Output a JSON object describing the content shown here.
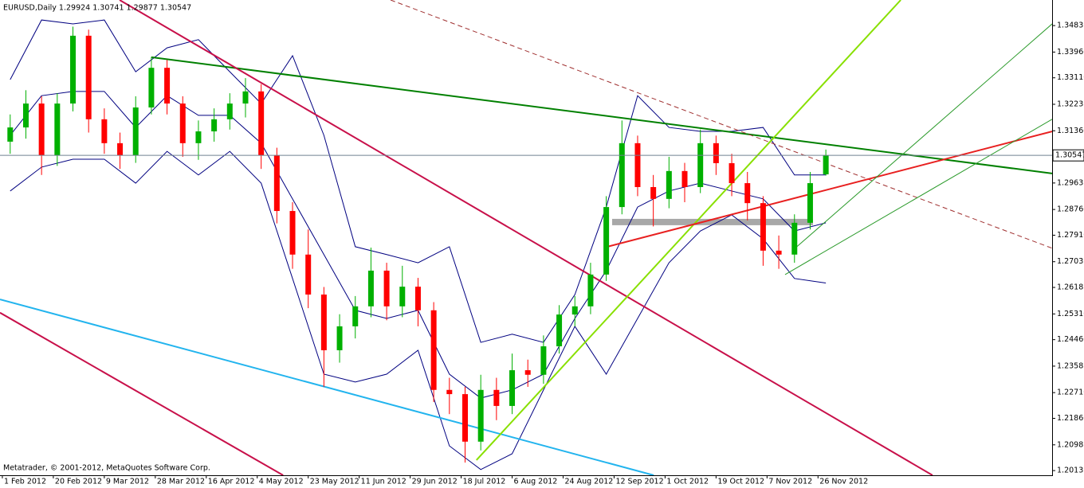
{
  "chart_data": {
    "type": "candlestick",
    "title": "EURUSD,Daily  1.29924 1.30741 1.29877 1.30547",
    "footer": "Metatrader, © 2001-2012, MetaQuotes Software Corp.",
    "up_color": "#00b000",
    "down_color": "#ff0000",
    "band_color": "#000080",
    "grid": false,
    "xlim": [
      -0.6,
      267.7
    ],
    "ylim": [
      1.1998,
      1.3568
    ],
    "xticks": [
      {
        "value": 0,
        "label": "1 Feb 2012"
      },
      {
        "value": 13,
        "label": "20 Feb 2012"
      },
      {
        "value": 26,
        "label": "9 Mar 2012"
      },
      {
        "value": 39,
        "label": "28 Mar 2012"
      },
      {
        "value": 52,
        "label": "16 Apr 2012"
      },
      {
        "value": 65,
        "label": "4 May 2012"
      },
      {
        "value": 78,
        "label": "23 May 2012"
      },
      {
        "value": 91,
        "label": "11 Jun 2012"
      },
      {
        "value": 104,
        "label": "29 Jun 2012"
      },
      {
        "value": 117,
        "label": "18 Jul 2012"
      },
      {
        "value": 130,
        "label": "6 Aug 2012"
      },
      {
        "value": 143,
        "label": "24 Aug 2012"
      },
      {
        "value": 156,
        "label": "12 Sep 2012"
      },
      {
        "value": 169,
        "label": "1 Oct 2012"
      },
      {
        "value": 182,
        "label": "19 Oct 2012"
      },
      {
        "value": 195,
        "label": "7 Nov 2012"
      },
      {
        "value": 208,
        "label": "26 Nov 2012"
      }
    ],
    "yticks": [
      1.34835,
      {
        "value": 1.3396,
        "label": "1.33960"
      },
      {
        "value": 1.3311,
        "label": "1.33110"
      },
      1.32235,
      {
        "value": 1.3136,
        "label": "1.31360"
      },
      1.29635,
      {
        "value": 1.2876,
        "label": "1.28760"
      },
      {
        "value": 1.2791,
        "label": "1.27910"
      },
      1.27035,
      1.26185,
      {
        "value": 1.2531,
        "label": "1.25310"
      },
      {
        "value": 1.2446,
        "label": "1.24460"
      },
      1.23585,
      {
        "value": 1.2271,
        "label": "1.22710"
      },
      {
        "value": 1.2186,
        "label": "1.21860"
      },
      1.20985,
      1.20135
    ],
    "last_price": 1.30547,
    "x": [
      2,
      6,
      10,
      14,
      18,
      22,
      26,
      30,
      34,
      38,
      42,
      46,
      50,
      54,
      58,
      62,
      66,
      70,
      74,
      78,
      82,
      86,
      90,
      94,
      98,
      102,
      106,
      110,
      114,
      118,
      122,
      126,
      130,
      134,
      138,
      142,
      146,
      150,
      154,
      158,
      162,
      166,
      170,
      174,
      178,
      182,
      186,
      190,
      194,
      198,
      202,
      206,
      210
    ],
    "ohlc": [
      [
        1.31,
        1.319,
        1.306,
        1.3147
      ],
      [
        1.3147,
        1.327,
        1.311,
        1.3226
      ],
      [
        1.3226,
        1.325,
        1.299,
        1.3055
      ],
      [
        1.3055,
        1.326,
        1.302,
        1.3226
      ],
      [
        1.3226,
        1.348,
        1.32,
        1.345
      ],
      [
        1.345,
        1.347,
        1.313,
        1.3174
      ],
      [
        1.3174,
        1.321,
        1.306,
        1.3095
      ],
      [
        1.3095,
        1.313,
        1.301,
        1.3055
      ],
      [
        1.3055,
        1.325,
        1.303,
        1.3213
      ],
      [
        1.3213,
        1.338,
        1.319,
        1.3344
      ],
      [
        1.3344,
        1.337,
        1.319,
        1.3226
      ],
      [
        1.3226,
        1.325,
        1.305,
        1.3095
      ],
      [
        1.3095,
        1.317,
        1.304,
        1.3134
      ],
      [
        1.3134,
        1.321,
        1.31,
        1.3174
      ],
      [
        1.3174,
        1.326,
        1.314,
        1.3226
      ],
      [
        1.3226,
        1.331,
        1.318,
        1.3266
      ],
      [
        1.3266,
        1.329,
        1.301,
        1.3055
      ],
      [
        1.3055,
        1.308,
        1.283,
        1.2871
      ],
      [
        1.2871,
        1.29,
        1.268,
        1.2727
      ],
      [
        1.2727,
        1.281,
        1.255,
        1.2595
      ],
      [
        1.2595,
        1.262,
        1.229,
        1.2411
      ],
      [
        1.2411,
        1.253,
        1.237,
        1.249
      ],
      [
        1.249,
        1.259,
        1.245,
        1.2556
      ],
      [
        1.2556,
        1.275,
        1.252,
        1.2674
      ],
      [
        1.2674,
        1.27,
        1.251,
        1.2556
      ],
      [
        1.2556,
        1.269,
        1.252,
        1.2621
      ],
      [
        1.2621,
        1.265,
        1.249,
        1.2543
      ],
      [
        1.2543,
        1.257,
        1.224,
        1.228
      ],
      [
        1.228,
        1.232,
        1.22,
        1.2266
      ],
      [
        1.2266,
        1.229,
        1.204,
        1.2109
      ],
      [
        1.2109,
        1.233,
        1.208,
        1.228
      ],
      [
        1.228,
        1.232,
        1.218,
        1.2227
      ],
      [
        1.2227,
        1.24,
        1.22,
        1.2345
      ],
      [
        1.2345,
        1.238,
        1.229,
        1.233
      ],
      [
        1.233,
        1.246,
        1.23,
        1.2424
      ],
      [
        1.2424,
        1.256,
        1.24,
        1.2529
      ],
      [
        1.2529,
        1.259,
        1.249,
        1.2556
      ],
      [
        1.2556,
        1.27,
        1.253,
        1.2661
      ],
      [
        1.2661,
        1.292,
        1.264,
        1.2884
      ],
      [
        1.2884,
        1.317,
        1.286,
        1.3095
      ],
      [
        1.3095,
        1.312,
        1.292,
        1.295
      ],
      [
        1.295,
        1.299,
        1.282,
        1.2911
      ],
      [
        1.2911,
        1.305,
        1.288,
        1.3003
      ],
      [
        1.3003,
        1.303,
        1.29,
        1.295
      ],
      [
        1.295,
        1.314,
        1.293,
        1.3095
      ],
      [
        1.3095,
        1.312,
        1.299,
        1.3029
      ],
      [
        1.3029,
        1.306,
        1.292,
        1.2963
      ],
      [
        1.2963,
        1.3,
        1.284,
        1.2897
      ],
      [
        1.2897,
        1.292,
        1.269,
        1.274
      ],
      [
        1.274,
        1.279,
        1.268,
        1.2727
      ],
      [
        1.2727,
        1.286,
        1.27,
        1.2832
      ],
      [
        1.2832,
        1.3,
        1.281,
        1.2963
      ],
      [
        1.2992,
        1.3074,
        1.2988,
        1.3055
      ]
    ],
    "bands": [
      {
        "x": [
          2,
          10,
          18,
          26,
          34,
          42,
          50,
          58,
          66,
          74,
          82,
          90,
          98,
          106,
          114,
          122,
          130,
          138,
          146,
          154,
          162,
          170,
          178,
          186,
          194,
          202,
          210
        ],
        "values": [
          1.3305,
          1.3502,
          1.3489,
          1.3502,
          1.3331,
          1.341,
          1.3437,
          1.3331,
          1.3226,
          1.3384,
          1.3121,
          1.2753,
          1.2727,
          1.27,
          1.2753,
          1.2437,
          1.2464,
          1.2437,
          1.2595,
          1.2884,
          1.3252,
          1.3147,
          1.3134,
          1.3134,
          1.3147,
          1.299,
          1.299
        ]
      },
      {
        "x": [
          2,
          10,
          18,
          26,
          34,
          42,
          50,
          58,
          66,
          74,
          82,
          90,
          98,
          106,
          114,
          122,
          130,
          138,
          146,
          154,
          162,
          170,
          178,
          186,
          194,
          202,
          210
        ],
        "values": [
          1.3121,
          1.3252,
          1.3266,
          1.3266,
          1.3147,
          1.3252,
          1.3187,
          1.3187,
          1.3095,
          1.2911,
          1.2727,
          1.2543,
          1.2516,
          1.2543,
          1.2332,
          1.2253,
          1.228,
          1.2332,
          1.2516,
          1.2674,
          1.2884,
          1.2937,
          1.2963,
          1.2937,
          1.2911,
          1.2805,
          1.2832
        ]
      },
      {
        "x": [
          2,
          10,
          18,
          26,
          34,
          42,
          50,
          58,
          66,
          74,
          82,
          90,
          98,
          106,
          114,
          122,
          130,
          138,
          146,
          154,
          162,
          170,
          178,
          186,
          194,
          202,
          210
        ],
        "values": [
          1.2937,
          1.3016,
          1.3042,
          1.3042,
          1.2963,
          1.3068,
          1.299,
          1.3068,
          1.2963,
          1.2648,
          1.2332,
          1.2306,
          1.2332,
          1.2411,
          1.2095,
          1.2017,
          1.2069,
          1.228,
          1.249,
          1.2332,
          1.2516,
          1.27,
          1.2805,
          1.2858,
          1.2779,
          1.2648,
          1.2633
        ]
      }
    ],
    "zone": {
      "x": [
        155.5,
        206.7
      ],
      "y": [
        1.2824,
        1.2845
      ],
      "color": "#a8a8a8"
    },
    "lines": [
      {
        "x": [
          38.0,
          267.7
        ],
        "y": [
          1.3379,
          1.2995
        ],
        "color": "#008000",
        "style": "thick"
      },
      {
        "x": [
          29.9,
          237.2
        ],
        "y": [
          1.3568,
          1.1998
        ],
        "color": "#c8104a",
        "style": "thick"
      },
      {
        "x": [
          -0.6,
          71.6
        ],
        "y": [
          1.2535,
          1.1998
        ],
        "color": "#c8104a",
        "style": "thick"
      },
      {
        "x": [
          -0.6,
          166.1
        ],
        "y": [
          1.2579,
          1.1998
        ],
        "color": "#22b4ee",
        "style": "thick"
      },
      {
        "x": [
          99.0,
          267.7
        ],
        "y": [
          1.3568,
          1.2748
        ],
        "color": "#a03030",
        "style": "dashed"
      },
      {
        "x": [
          120.9,
          229.1
        ],
        "y": [
          1.2048,
          1.3568
        ],
        "color": "#88e000",
        "style": "thick"
      },
      {
        "x": [
          154.3,
          267.7
        ],
        "y": [
          1.2753,
          1.3134
        ],
        "color": "#e82020",
        "style": "thick"
      },
      {
        "x": [
          199.6,
          267.7
        ],
        "y": [
          1.2661,
          1.3174
        ],
        "color": "#2a9a2a",
        "style": "thin"
      },
      {
        "x": [
          202.6,
          267.7
        ],
        "y": [
          1.2753,
          1.3489
        ],
        "color": "#2a9a2a",
        "style": "thin"
      }
    ]
  }
}
